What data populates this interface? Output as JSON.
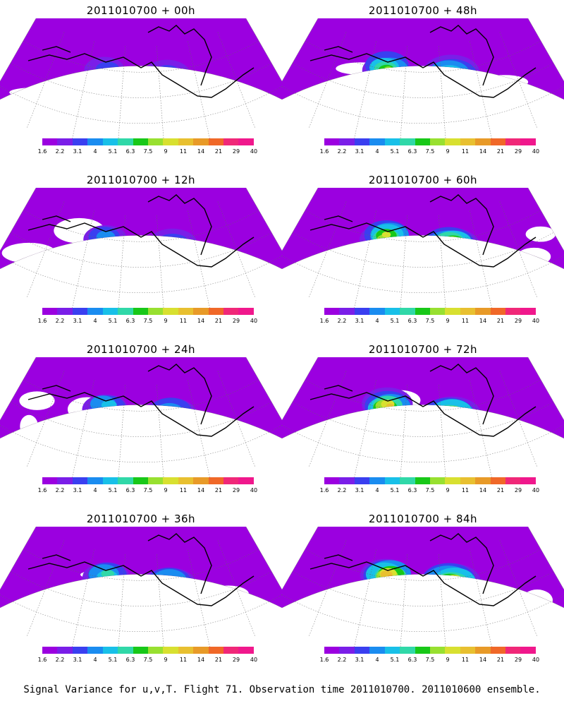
{
  "panels": [
    {
      "title": "2011010700 + 00h",
      "intensity": 0.15
    },
    {
      "title": "2011010700 + 48h",
      "intensity": 0.55
    },
    {
      "title": "2011010700 + 12h",
      "intensity": 0.25
    },
    {
      "title": "2011010700 + 60h",
      "intensity": 0.65
    },
    {
      "title": "2011010700 + 24h",
      "intensity": 0.35
    },
    {
      "title": "2011010700 + 72h",
      "intensity": 0.78
    },
    {
      "title": "2011010700 + 36h",
      "intensity": 0.45
    },
    {
      "title": "2011010700 + 84h",
      "intensity": 0.85
    }
  ],
  "colorbar": {
    "labels": [
      "1.6",
      "2.2",
      "3.1",
      "4",
      "5.1",
      "6.3",
      "7.5",
      "9",
      "11",
      "14",
      "21",
      "29",
      "40"
    ],
    "colors": [
      "#9b00e0",
      "#7a1ee8",
      "#3a3ff0",
      "#1a8cf0",
      "#18c0e8",
      "#30d8a8",
      "#18c818",
      "#98e030",
      "#d8e030",
      "#e8c030",
      "#e89a28",
      "#f06828",
      "#f02878",
      "#f0188c"
    ]
  },
  "caption": "Signal Variance for u,v,T. Flight 71. Observation time 2011010700. 2011010600 ensemble."
}
